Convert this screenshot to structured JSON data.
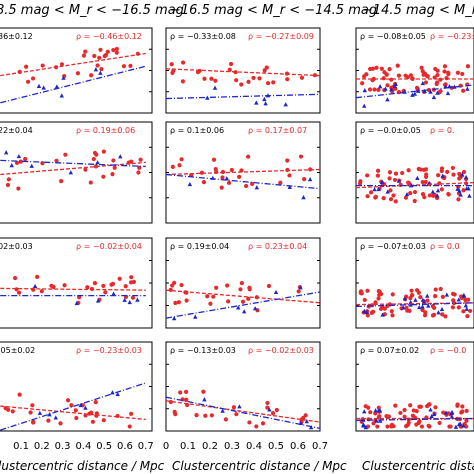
{
  "colors": {
    "red": "#e8292b",
    "blue": "#1f27c9",
    "black": "#000000"
  },
  "chart_data": {
    "type": "scatter",
    "layout": "4 rows x 3 columns of panels",
    "column_titles": [
      "8.5 mag < M_r < −16.5 mag",
      "−16.5 mag < M_r < −14.5 mag",
      "−14.5 mag < M_r < −"
    ],
    "xlabels": [
      "lustercentric distance / Mpc",
      "Clustercentric distance / Mpc",
      "Clustercentric dista"
    ],
    "x_tick_labels": [
      "0.1",
      "0.2",
      "0.3",
      "0.4",
      "0.5",
      "0.6",
      "0.7",
      "0",
      "0.1",
      "0.2",
      "0.3",
      "0.4",
      "0.5",
      "0.6",
      "0.7"
    ],
    "grid": false,
    "panels": [
      {
        "row": 0,
        "col": 0,
        "blue_rho": "36±0.12",
        "red_rho": "ρ = −0.46±0.12",
        "red_trend": [
          [
            0.0,
            0.56
          ],
          [
            0.7,
            0.3
          ]
        ],
        "blue_trend": [
          [
            0.0,
            0.88
          ],
          [
            0.7,
            0.45
          ]
        ]
      },
      {
        "row": 0,
        "col": 1,
        "blue_rho": "ρ = −0.33±0.08",
        "red_rho": "ρ = −0.27±0.09",
        "red_trend": [
          [
            0.0,
            0.48
          ],
          [
            0.7,
            0.56
          ]
        ],
        "blue_trend": [
          [
            0.0,
            0.83
          ],
          [
            0.7,
            0.78
          ]
        ]
      },
      {
        "row": 0,
        "col": 2,
        "blue_rho": "ρ = −0.08±0.05",
        "red_rho": "ρ = −0.23±0",
        "red_trend": [
          [
            0.0,
            0.6
          ],
          [
            0.7,
            0.6
          ]
        ],
        "blue_trend": [
          [
            0.0,
            0.82
          ],
          [
            0.7,
            0.67
          ]
        ]
      },
      {
        "row": 1,
        "col": 0,
        "blue_rho": "22±0.04",
        "red_rho": "ρ = 0.19±0.06",
        "red_trend": [
          [
            0.0,
            0.52
          ],
          [
            0.7,
            0.4
          ]
        ],
        "blue_trend": [
          [
            0.0,
            0.38
          ],
          [
            0.7,
            0.44
          ]
        ]
      },
      {
        "row": 1,
        "col": 1,
        "blue_rho": "ρ = 0.1±0.06",
        "red_rho": "ρ = 0.17±0.07",
        "red_trend": [
          [
            0.0,
            0.52
          ],
          [
            0.7,
            0.47
          ]
        ],
        "blue_trend": [
          [
            0.0,
            0.52
          ],
          [
            0.7,
            0.66
          ]
        ]
      },
      {
        "row": 1,
        "col": 2,
        "blue_rho": "ρ = −0.0±0.05",
        "red_rho": "ρ = 0.",
        "red_trend": [
          [
            0.0,
            0.65
          ],
          [
            0.7,
            0.6
          ]
        ],
        "blue_trend": [
          [
            0.0,
            0.63
          ],
          [
            0.7,
            0.63
          ]
        ]
      },
      {
        "row": 2,
        "col": 0,
        "blue_rho": "02±0.03",
        "red_rho": "ρ = −0.02±0.04",
        "red_trend": [
          [
            0.0,
            0.56
          ],
          [
            0.7,
            0.58
          ]
        ],
        "blue_trend": [
          [
            0.0,
            0.64
          ],
          [
            0.7,
            0.64
          ]
        ]
      },
      {
        "row": 2,
        "col": 1,
        "blue_rho": "ρ = 0.19±0.04",
        "red_rho": "ρ = 0.23±0.04",
        "red_trend": [
          [
            0.0,
            0.58
          ],
          [
            0.7,
            0.72
          ]
        ],
        "blue_trend": [
          [
            0.0,
            0.89
          ],
          [
            0.7,
            0.6
          ]
        ]
      },
      {
        "row": 2,
        "col": 2,
        "blue_rho": "ρ = −0.07±0.03",
        "red_rho": "ρ = 0.0",
        "red_trend": [
          [
            0.0,
            0.74
          ],
          [
            0.7,
            0.72
          ]
        ],
        "blue_trend": [
          [
            0.0,
            0.76
          ],
          [
            0.7,
            0.72
          ]
        ]
      },
      {
        "row": 3,
        "col": 0,
        "blue_rho": ".05±0.02",
        "red_rho": "ρ = −0.23±0.03",
        "red_trend": [
          [
            0.0,
            0.72
          ],
          [
            0.7,
            0.87
          ]
        ],
        "blue_trend": [
          [
            0.0,
            0.99
          ],
          [
            0.7,
            0.46
          ]
        ]
      },
      {
        "row": 3,
        "col": 1,
        "blue_rho": "ρ = −0.13±0.03",
        "red_rho": "ρ = −0.02±0.03",
        "red_trend": [
          [
            0.0,
            0.66
          ],
          [
            0.7,
            0.9
          ]
        ],
        "blue_trend": [
          [
            0.0,
            0.62
          ],
          [
            0.7,
            0.97
          ]
        ]
      },
      {
        "row": 3,
        "col": 2,
        "blue_rho": "ρ = 0.07±0.02",
        "red_rho": "ρ = −0.0",
        "red_trend": [
          [
            0.0,
            0.86
          ],
          [
            0.7,
            0.86
          ]
        ],
        "blue_trend": [
          [
            0.0,
            0.88
          ],
          [
            0.7,
            0.86
          ]
        ]
      }
    ]
  }
}
